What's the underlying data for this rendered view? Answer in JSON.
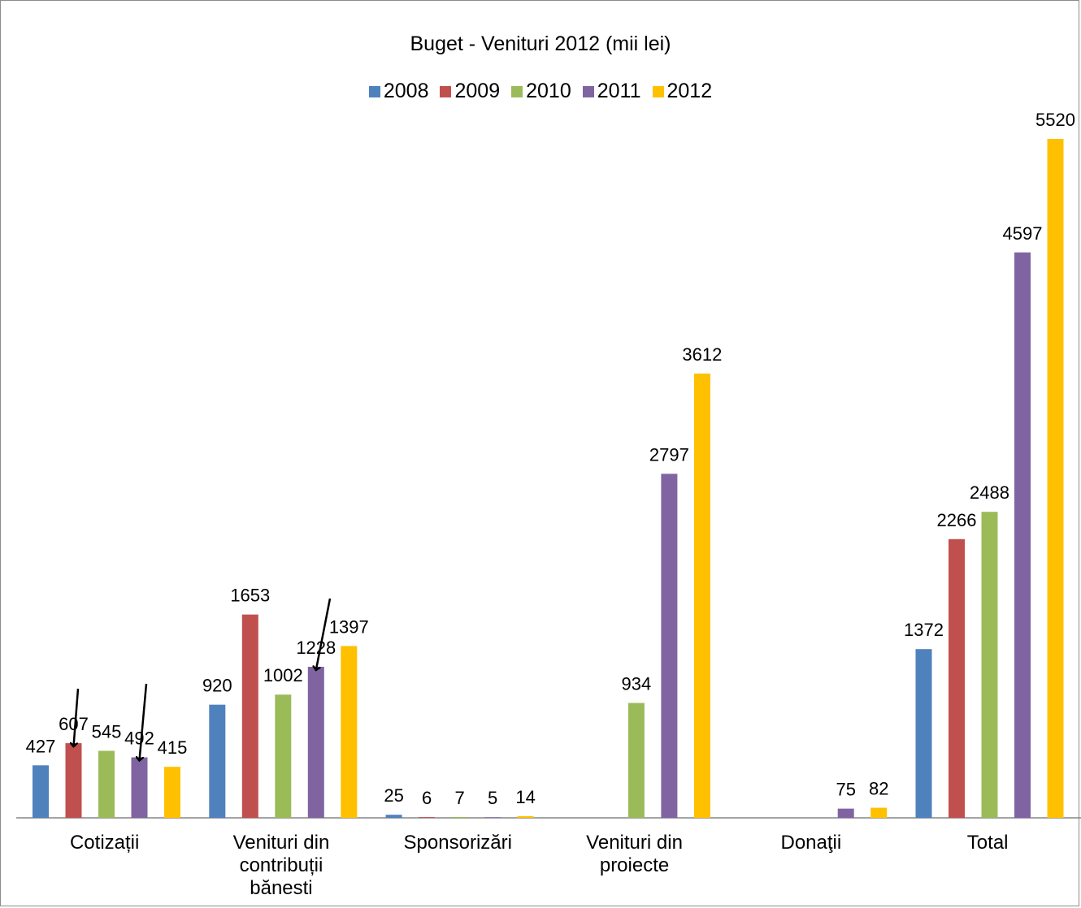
{
  "chart_data": {
    "type": "bar",
    "title": "Buget - Venituri 2012 (mii lei)",
    "categories": [
      [
        "Cotizații"
      ],
      [
        "Venituri din",
        "contribuții",
        "bănesti"
      ],
      [
        "Sponsorizări"
      ],
      [
        "Venituri din",
        "proiecte"
      ],
      [
        "Donaţii"
      ],
      [
        "Total"
      ]
    ],
    "series": [
      {
        "name": "2008",
        "color": "#4f81bd",
        "values": [
          427,
          920,
          25,
          null,
          null,
          1372
        ],
        "labels": [
          "427",
          "920",
          "25",
          "",
          "",
          "1372"
        ]
      },
      {
        "name": "2009",
        "color": "#c0504d",
        "values": [
          607,
          1653,
          6,
          null,
          null,
          2266
        ],
        "labels": [
          "607",
          "1653",
          "6",
          "",
          "",
          "2266"
        ]
      },
      {
        "name": "2010",
        "color": "#9bbb59",
        "values": [
          545,
          1002,
          7,
          934,
          null,
          2488
        ],
        "labels": [
          "545",
          "1002",
          "7",
          "934",
          "",
          "2488"
        ]
      },
      {
        "name": "2011",
        "color": "#8064a2",
        "values": [
          492,
          1228,
          5,
          2797,
          75,
          4597
        ],
        "labels": [
          "492",
          "1228",
          "5",
          "2797",
          "75",
          "4597"
        ]
      },
      {
        "name": "2012",
        "color": "#ffc000",
        "values": [
          415,
          1397,
          14,
          3612,
          82,
          5520
        ],
        "labels": [
          "415",
          "1397",
          "14",
          "3612",
          "82",
          "5520"
        ]
      }
    ],
    "ylim": [
      0,
      5520
    ],
    "grid": false,
    "legend_position": "top",
    "annotations": [
      "arrow to 607",
      "arrow to 492",
      "arrow to 1228"
    ]
  }
}
